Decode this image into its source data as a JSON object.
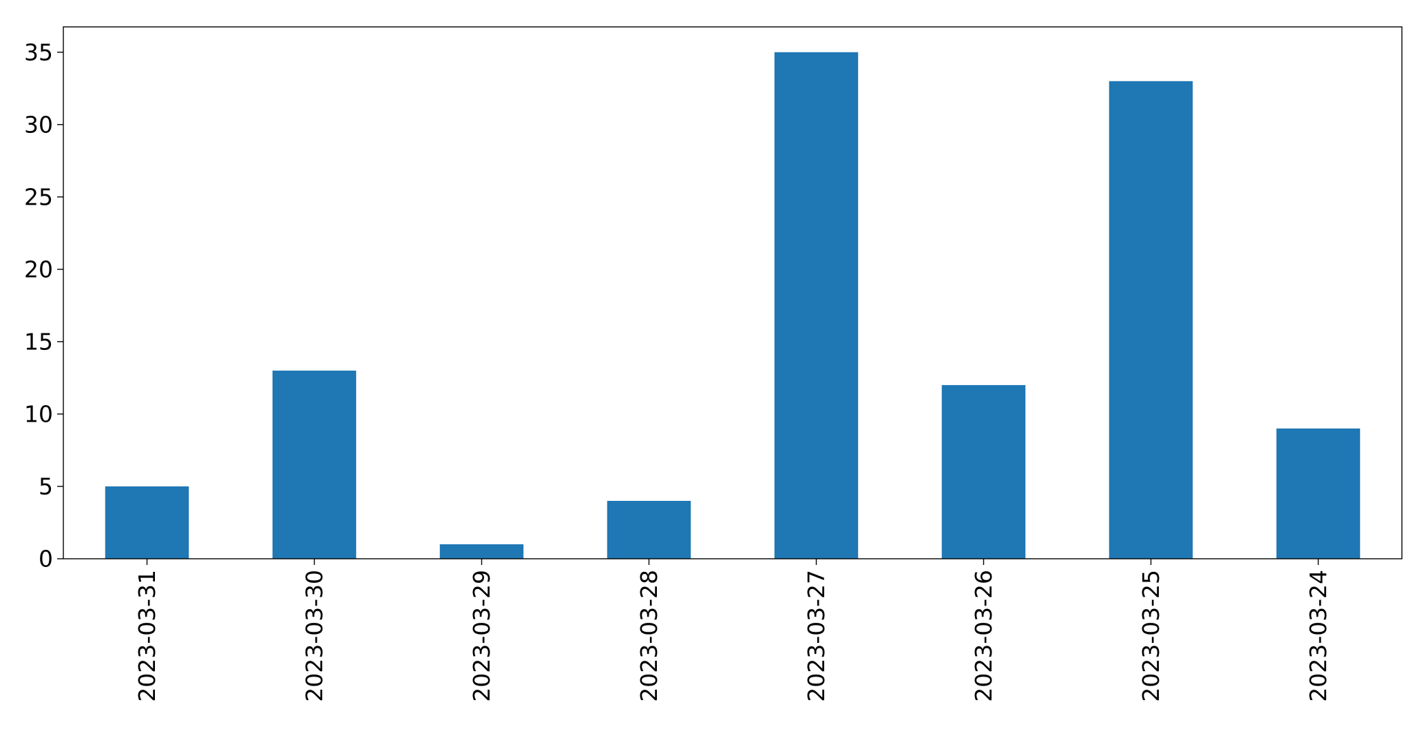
{
  "chart_data": {
    "type": "bar",
    "title": "",
    "xlabel": "",
    "ylabel": "",
    "categories": [
      "2023-03-31",
      "2023-03-30",
      "2023-03-29",
      "2023-03-28",
      "2023-03-27",
      "2023-03-26",
      "2023-03-25",
      "2023-03-24"
    ],
    "values": [
      5,
      13,
      1,
      4,
      35,
      12,
      33,
      9
    ],
    "ylim": [
      0,
      36.75
    ],
    "yticks": [
      0,
      5,
      10,
      15,
      20,
      25,
      30,
      35
    ],
    "x_tick_rotation": "vertical",
    "grid": false,
    "legend": "none",
    "bar_color": "#1f77b4"
  }
}
